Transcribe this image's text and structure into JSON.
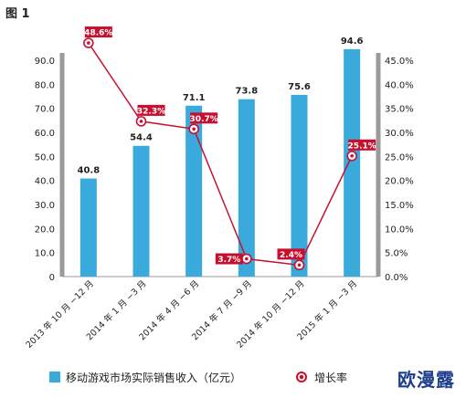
{
  "figure_label": "图 1",
  "colors": {
    "bar": "#3aa9dc",
    "line": "#c8102e",
    "axis": "#9a9a9a",
    "text": "#222222"
  },
  "legend": {
    "bar_label": "移动游戏市场实际销售收入（亿元）",
    "line_label": "增长率"
  },
  "watermark": "欧漫露",
  "chart_data": {
    "type": "bar",
    "categories": [
      "2013 年 10 月 −12 月",
      "2014 年 1 月 −3 月",
      "2014 年 4 月 −6 月",
      "2014 年 7 月 −9 月",
      "2014 年 10 月 −12 月",
      "2015 年 1 月 −3 月"
    ],
    "series": [
      {
        "name": "移动游戏市场实际销售收入（亿元）",
        "type": "bar",
        "axis": "left",
        "values": [
          40.8,
          54.4,
          71.1,
          73.8,
          75.6,
          94.6
        ],
        "labels": [
          "40.8",
          "54.4",
          "71.1",
          "73.8",
          "75.6",
          "94.6"
        ]
      },
      {
        "name": "增长率",
        "type": "line",
        "axis": "right",
        "values": [
          48.6,
          32.3,
          30.7,
          3.7,
          2.4,
          25.1
        ],
        "labels": [
          "48.6%",
          "32.3%",
          "30.7%",
          "3.7%",
          "2.4%",
          "25.1%"
        ]
      }
    ],
    "y_left": {
      "ylim": [
        0,
        90
      ],
      "ticks": [
        "0",
        "10.0",
        "20.0",
        "30.0",
        "40.0",
        "50.0",
        "60.0",
        "70.0",
        "80.0",
        "90.0"
      ]
    },
    "y_right": {
      "ylim": [
        0,
        45
      ],
      "ticks": [
        "0.0%",
        "5.0%",
        "10.0%",
        "15.0%",
        "20.0%",
        "25.0%",
        "30.0%",
        "35.0%",
        "40.0%",
        "45.0%"
      ]
    },
    "grid": false,
    "legend_position": "bottom"
  }
}
